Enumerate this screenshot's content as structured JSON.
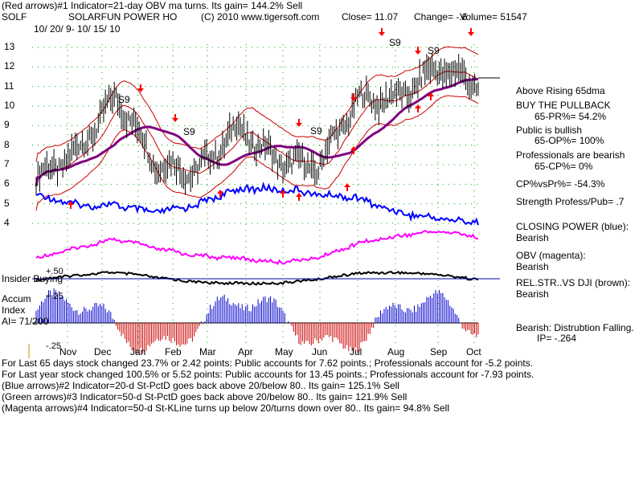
{
  "header": {
    "indicator_line": "(Red arrows)#1 Indicator=21-day OBV ma turns. Its gain= 144.2% Sell",
    "ticker": "SOLF",
    "company": "SOLARFUN POWER HO",
    "copyright": "(C) 2010 www.tigersoft.com",
    "close": "Close= 11.07",
    "change": "Change= -.6",
    "volume": "Volume= 51547",
    "date_range": "10/ 20/ 9- 10/ 15/ 10"
  },
  "chart_data": {
    "type": "line",
    "x": [
      "Nov",
      "Dec",
      "Jan",
      "Feb",
      "Mar",
      "Apr",
      "May",
      "Jun",
      "Jul",
      "Aug",
      "Sep",
      "Oct"
    ],
    "y_ticks": [
      "13",
      "12",
      "11",
      "10",
      "9",
      "8",
      "7",
      "6",
      "5",
      "4"
    ],
    "ylim": [
      3.5,
      13.5
    ],
    "price_series": [
      {
        "name": "price_close",
        "values": [
          6.3,
          7.6,
          10.5,
          7.0,
          6.6,
          8.9,
          7.2,
          6.9,
          10.3,
          10.4,
          12.0,
          11.07
        ]
      }
    ],
    "signals": [
      "S9",
      "S9",
      "S9",
      "S9",
      "S9"
    ],
    "accum_labels": {
      "top": "+.50",
      "mid": "+.25",
      "bottom": "-.25"
    },
    "insider_label": "Insider Buying",
    "accum_title": "Accum",
    "accum_title2": "Index",
    "ai_value": "AI= 71/200"
  },
  "colors": {
    "price": "#000000",
    "bands": "#cc0000",
    "ma": "#800080",
    "closing_power": "#0000ff",
    "obv": "#ff00ff",
    "accum_pos": "#0000cc",
    "accum_neg": "#cc0000",
    "arrow_up": "#ff0000"
  },
  "right_panel": {
    "above": "Above Rising 65dma",
    "buy": "BUY THE PULLBACK",
    "pr": "65-PR%= 54.2%",
    "public": "Public is bullish",
    "op": "65-OP%= 100%",
    "pros": "Professionals are bearish",
    "cp": "65-CP%= 0%",
    "cpvspr": "CP%vsPr%= -54.3%",
    "strength": "Strength Profess/Pub= .7",
    "closing_power": "CLOSING POWER (blue):",
    "closing_power_val": "Bearish",
    "obv": "OBV (magenta):",
    "obv_val": "Bearish",
    "relstr": "REL.STR..VS DJI (brown):",
    "relstr_val": "Bearish",
    "bearish_dist": "Bearish: Distrubtion Falling.",
    "ip": "IP= -.264"
  },
  "footer": {
    "line1": "For Last 65 days stock changed  23.7% or  2.42 points:  Public accounts for  7.62 points.;  Professionals account for -5.2 points.",
    "line2": "For Last year stock changed  100.5% or  5.52 points:  Public accounts for  13.45 points.;  Professionals account for -7.93 points.",
    "line3": "(Blue arrows)#2 Indicator=20-d St-PctD goes back above 20/below 80.. Its gain= 125.1% Sell",
    "line4": "(Green arrows)#3 Indicator=50-d St-PctD goes back above 20/below 80.. Its gain= 121.9% Sell",
    "line5": "(Magenta arrows)#4 Indicator=50-d St-KLine turns up below 20/turns down over 80.. Its gain= 94.8% Sell"
  }
}
